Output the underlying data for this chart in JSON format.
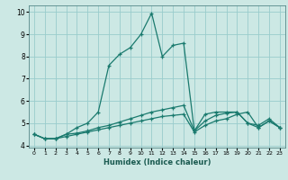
{
  "xlabel": "Humidex (Indice chaleur)",
  "bg_color": "#cce8e4",
  "grid_color": "#99cccc",
  "line_color": "#1a7a6e",
  "xlim": [
    -0.5,
    23.5
  ],
  "ylim": [
    3.9,
    10.3
  ],
  "yticks": [
    4,
    5,
    6,
    7,
    8,
    9,
    10
  ],
  "xticks": [
    0,
    1,
    2,
    3,
    4,
    5,
    6,
    7,
    8,
    9,
    10,
    11,
    12,
    13,
    14,
    15,
    16,
    17,
    18,
    19,
    20,
    21,
    22,
    23
  ],
  "series": [
    {
      "x": [
        0,
        1,
        2,
        3,
        4,
        5,
        6,
        7,
        8,
        9,
        10,
        11,
        12,
        13,
        14,
        15,
        16,
        17,
        18,
        19,
        20,
        21,
        22,
        23
      ],
      "y": [
        4.5,
        4.3,
        4.3,
        4.4,
        4.5,
        4.6,
        4.7,
        4.8,
        4.9,
        5.0,
        5.1,
        5.2,
        5.3,
        5.35,
        5.4,
        4.6,
        4.9,
        5.1,
        5.2,
        5.4,
        5.5,
        4.8,
        5.1,
        4.8
      ]
    },
    {
      "x": [
        0,
        1,
        2,
        3,
        4,
        5,
        6,
        7,
        8,
        9,
        10,
        11,
        12,
        13,
        14,
        15,
        16,
        17,
        18,
        19,
        20,
        21,
        22,
        23
      ],
      "y": [
        4.5,
        4.3,
        4.3,
        4.5,
        4.55,
        4.65,
        4.8,
        4.9,
        5.05,
        5.2,
        5.35,
        5.5,
        5.6,
        5.7,
        5.8,
        4.65,
        5.1,
        5.35,
        5.45,
        5.5,
        5.0,
        4.9,
        5.2,
        4.8
      ]
    },
    {
      "x": [
        0,
        1,
        2,
        3,
        4,
        5,
        6,
        7,
        8,
        9,
        10,
        11,
        12,
        13,
        14,
        15,
        16,
        17,
        18,
        19,
        20,
        21,
        22,
        23
      ],
      "y": [
        4.5,
        4.3,
        4.3,
        4.5,
        4.8,
        5.0,
        5.5,
        7.6,
        8.1,
        8.4,
        9.0,
        9.95,
        8.0,
        8.5,
        8.6,
        4.65,
        5.4,
        5.5,
        5.5,
        5.5,
        5.0,
        4.8,
        5.1,
        4.8
      ]
    }
  ]
}
